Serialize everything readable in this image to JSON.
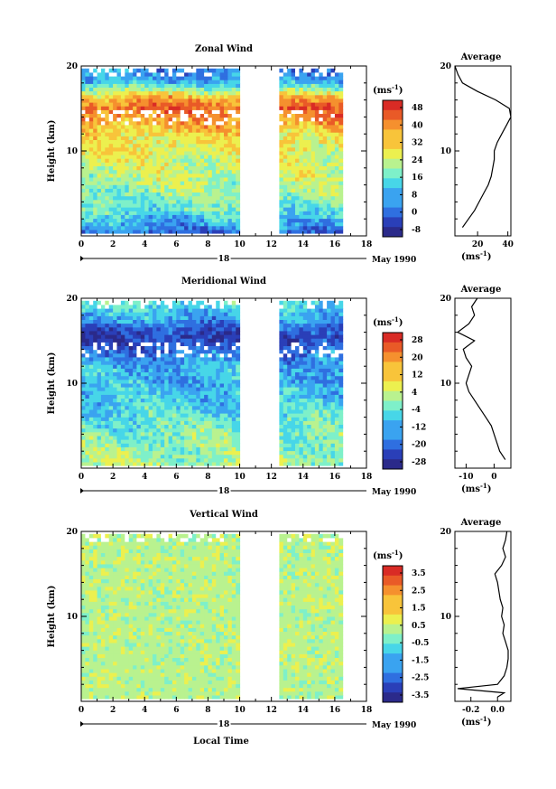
{
  "panels": [
    {
      "id": "zonal",
      "title": "Zonal Wind",
      "units": "(ms",
      "units_sup": "-1",
      "units_close": ")",
      "ytick_labels": [
        "20",
        "10"
      ],
      "yticks": [
        20,
        10
      ],
      "xtick_labels": [
        "0",
        "2",
        "4",
        "6",
        "8",
        "10",
        "12",
        "14",
        "16",
        "18"
      ],
      "date_day": "18",
      "date_month": "May 1990",
      "ylabel": "Height (km)",
      "colorbar_labels": [
        "48",
        "40",
        "32",
        "24",
        "16",
        "8",
        "0",
        "-8"
      ],
      "colorbar_values": [
        48,
        40,
        32,
        24,
        16,
        8,
        0,
        -8
      ],
      "avg_title": "Average",
      "avg_xtick_labels": [
        "20",
        "40"
      ],
      "avg_xticks": [
        20,
        40
      ],
      "avg_xlim": [
        5,
        42
      ],
      "avg_xlabel": "(ms",
      "avg_xlabel_sup": "-1",
      "avg_xlabel_close": ")"
    },
    {
      "id": "meridional",
      "title": "Meridional Wind",
      "units": "(ms",
      "units_sup": "-1",
      "units_close": ")",
      "ytick_labels": [
        "20",
        "10"
      ],
      "yticks": [
        20,
        10
      ],
      "xtick_labels": [
        "0",
        "2",
        "4",
        "6",
        "8",
        "10",
        "12",
        "14",
        "16",
        "18"
      ],
      "date_day": "18",
      "date_month": "May 1990",
      "ylabel": "Height (km)",
      "colorbar_labels": [
        "28",
        "20",
        "12",
        "4",
        "-4",
        "-12",
        "-20",
        "-28"
      ],
      "colorbar_values": [
        28,
        20,
        12,
        4,
        -4,
        -12,
        -20,
        -28
      ],
      "avg_title": "Average",
      "avg_xtick_labels": [
        "-10",
        "0"
      ],
      "avg_xticks": [
        -10,
        0
      ],
      "avg_xlim": [
        -14,
        6
      ],
      "avg_xlabel": "(ms",
      "avg_xlabel_sup": "-1",
      "avg_xlabel_close": ")"
    },
    {
      "id": "vertical",
      "title": "Vertical Wind",
      "units": "(ms",
      "units_sup": "-1",
      "units_close": ")",
      "ytick_labels": [
        "20",
        "10"
      ],
      "yticks": [
        20,
        10
      ],
      "xtick_labels": [
        "0",
        "2",
        "4",
        "6",
        "8",
        "10",
        "12",
        "14",
        "16",
        "18"
      ],
      "date_day": "18",
      "date_month": "May 1990",
      "ylabel": "Height (km)",
      "colorbar_labels": [
        "3.5",
        "2.5",
        "1.5",
        "0.5",
        "-0.5",
        "-1.5",
        "-2.5",
        "-3.5"
      ],
      "colorbar_values": [
        3.5,
        2.5,
        1.5,
        0.5,
        -0.5,
        -1.5,
        -2.5,
        -3.5
      ],
      "avg_title": "Average",
      "avg_xtick_labels": [
        "-0.2",
        "0.0"
      ],
      "avg_xticks": [
        -0.2,
        0.0
      ],
      "avg_xlim": [
        -0.32,
        0.1
      ],
      "avg_xlabel": "(ms",
      "avg_xlabel_sup": "-1",
      "avg_xlabel_close": ")"
    }
  ],
  "bottom_xlabel": "Local Time",
  "colors": {
    "scale": [
      "#2b2a8a",
      "#2a3fb8",
      "#2f6fe0",
      "#3aa3f0",
      "#47d6e8",
      "#7ef0c9",
      "#b9f28f",
      "#ecf04f",
      "#f8c43a",
      "#f5902e",
      "#e95a27",
      "#d92b25"
    ]
  },
  "chart_data": [
    {
      "type": "heatmap",
      "title": "Zonal Wind",
      "xlabel": "Local Time",
      "ylabel": "Height (km)",
      "xlim": [
        0,
        18
      ],
      "ylim": [
        0,
        20
      ],
      "data_gap_hours": [
        10,
        12.3
      ],
      "data_end_hour": 16.3,
      "colorbar_range": [
        -8,
        48
      ],
      "profile_height_km": [
        0,
        1,
        2,
        3,
        4,
        5,
        6,
        7,
        8,
        9,
        10,
        11,
        12,
        13,
        14,
        15,
        16,
        17,
        18,
        19,
        20
      ],
      "profile_value": [
        2,
        8,
        12,
        16,
        18,
        20,
        22,
        23,
        24,
        25,
        27,
        28,
        30,
        33,
        37,
        40,
        34,
        20,
        10,
        6,
        5
      ],
      "average": {
        "height_km": [
          1,
          2,
          3,
          4,
          5,
          6,
          7,
          8,
          9,
          10,
          11,
          12,
          13,
          14,
          15,
          16,
          17,
          18,
          19,
          20
        ],
        "value": [
          10,
          14,
          18,
          21,
          24,
          27,
          29,
          30,
          31,
          31,
          33,
          36,
          39,
          42,
          41,
          32,
          20,
          10,
          7,
          5
        ]
      }
    },
    {
      "type": "heatmap",
      "title": "Meridional Wind",
      "xlabel": "Local Time",
      "ylabel": "Height (km)",
      "xlim": [
        0,
        18
      ],
      "ylim": [
        0,
        20
      ],
      "data_gap_hours": [
        10,
        12.3
      ],
      "data_end_hour": 16.3,
      "colorbar_range": [
        -28,
        28
      ],
      "profile_height_km": [
        0,
        1,
        2,
        3,
        4,
        5,
        6,
        7,
        8,
        9,
        10,
        11,
        12,
        13,
        14,
        15,
        16,
        17,
        18,
        19,
        20
      ],
      "profile_value": [
        2,
        1,
        0,
        -1,
        -2,
        -4,
        -6,
        -7,
        -8,
        -9,
        -10,
        -10,
        -11,
        -14,
        -18,
        -22,
        -20,
        -14,
        -10,
        -6,
        -4
      ],
      "average": {
        "height_km": [
          1,
          2,
          3,
          4,
          5,
          6,
          7,
          8,
          9,
          10,
          11,
          12,
          13,
          14,
          15,
          16,
          17,
          18,
          19,
          20
        ],
        "value": [
          4,
          2,
          1,
          0,
          -1,
          -3,
          -5,
          -7,
          -9,
          -10,
          -9,
          -8,
          -10,
          -11,
          -7,
          -13,
          -9,
          -7,
          -8,
          -6
        ]
      }
    },
    {
      "type": "heatmap",
      "title": "Vertical Wind",
      "xlabel": "Local Time",
      "ylabel": "Height (km)",
      "xlim": [
        0,
        18
      ],
      "ylim": [
        0,
        20
      ],
      "data_gap_hours": [
        10,
        12.3
      ],
      "data_end_hour": 16.3,
      "colorbar_range": [
        -3.5,
        3.5
      ],
      "profile_height_km": [
        0,
        1,
        2,
        3,
        4,
        5,
        6,
        7,
        8,
        9,
        10,
        11,
        12,
        13,
        14,
        15,
        16,
        17,
        18,
        19,
        20
      ],
      "profile_value": [
        -0.2,
        -0.3,
        -0.2,
        -0.1,
        -0.1,
        -0.1,
        -0.1,
        -0.1,
        -0.1,
        -0.1,
        -0.1,
        -0.1,
        -0.1,
        -0.1,
        -0.1,
        -0.1,
        -0.1,
        -0.1,
        -0.1,
        -0.1,
        -0.1
      ],
      "average": {
        "height_km": [
          0.5,
          1,
          1.5,
          2,
          3,
          4,
          5,
          6,
          7,
          8,
          9,
          10,
          11,
          12,
          13,
          14,
          15,
          16,
          17,
          18,
          19,
          20
        ],
        "value": [
          0.0,
          0.05,
          -0.3,
          0.0,
          0.05,
          0.07,
          0.08,
          0.08,
          0.06,
          0.04,
          0.05,
          0.03,
          0.04,
          0.02,
          0.01,
          0.0,
          -0.02,
          0.03,
          0.06,
          0.04,
          0.06,
          0.07
        ]
      }
    }
  ]
}
